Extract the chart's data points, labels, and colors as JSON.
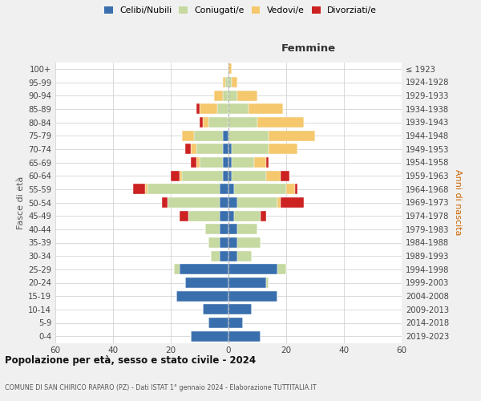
{
  "age_groups": [
    "0-4",
    "5-9",
    "10-14",
    "15-19",
    "20-24",
    "25-29",
    "30-34",
    "35-39",
    "40-44",
    "45-49",
    "50-54",
    "55-59",
    "60-64",
    "65-69",
    "70-74",
    "75-79",
    "80-84",
    "85-89",
    "90-94",
    "95-99",
    "100+"
  ],
  "birth_years": [
    "2019-2023",
    "2014-2018",
    "2009-2013",
    "2004-2008",
    "1999-2003",
    "1994-1998",
    "1989-1993",
    "1984-1988",
    "1979-1983",
    "1974-1978",
    "1969-1973",
    "1964-1968",
    "1959-1963",
    "1954-1958",
    "1949-1953",
    "1944-1948",
    "1939-1943",
    "1934-1938",
    "1929-1933",
    "1924-1928",
    "≤ 1923"
  ],
  "colors": {
    "celibe": "#3a6fad",
    "coniugato": "#c5d9a0",
    "vedovo": "#f5c86e",
    "divorziato": "#cc2222"
  },
  "males": {
    "celibe": [
      13,
      7,
      9,
      18,
      15,
      17,
      3,
      3,
      3,
      3,
      3,
      3,
      2,
      2,
      2,
      2,
      0,
      0,
      0,
      0,
      0
    ],
    "coniugato": [
      0,
      0,
      0,
      0,
      0,
      2,
      3,
      4,
      5,
      11,
      18,
      25,
      14,
      8,
      9,
      10,
      7,
      4,
      2,
      1,
      0
    ],
    "vedovo": [
      0,
      0,
      0,
      0,
      0,
      0,
      0,
      0,
      0,
      0,
      0,
      1,
      1,
      1,
      2,
      4,
      2,
      6,
      3,
      1,
      0
    ],
    "divorziato": [
      0,
      0,
      0,
      0,
      0,
      0,
      0,
      0,
      0,
      3,
      2,
      4,
      3,
      2,
      2,
      0,
      1,
      1,
      0,
      0,
      0
    ]
  },
  "females": {
    "nubile": [
      11,
      5,
      8,
      17,
      13,
      17,
      3,
      3,
      3,
      2,
      3,
      2,
      1,
      1,
      1,
      0,
      0,
      0,
      0,
      0,
      0
    ],
    "coniugata": [
      0,
      0,
      0,
      0,
      1,
      3,
      5,
      8,
      7,
      9,
      14,
      18,
      12,
      8,
      13,
      14,
      10,
      7,
      3,
      1,
      0
    ],
    "vedova": [
      0,
      0,
      0,
      0,
      0,
      0,
      0,
      0,
      0,
      0,
      1,
      3,
      5,
      4,
      10,
      16,
      16,
      12,
      7,
      2,
      1
    ],
    "divorziata": [
      0,
      0,
      0,
      0,
      0,
      0,
      0,
      0,
      0,
      2,
      8,
      1,
      3,
      1,
      0,
      0,
      0,
      0,
      0,
      0,
      0
    ]
  },
  "xlim": 60,
  "title_main": "Popolazione per età, sesso e stato civile - 2024",
  "title_sub": "COMUNE DI SAN CHIRICO RAPARO (PZ) - Dati ISTAT 1° gennaio 2024 - Elaborazione TUTTITALIA.IT",
  "xlabel_right": "Femmine",
  "ylabel_left": "Fasce di età",
  "ylabel_right": "Anni di nascita",
  "bg_color": "#f0f0f0",
  "plot_bg": "#ffffff"
}
